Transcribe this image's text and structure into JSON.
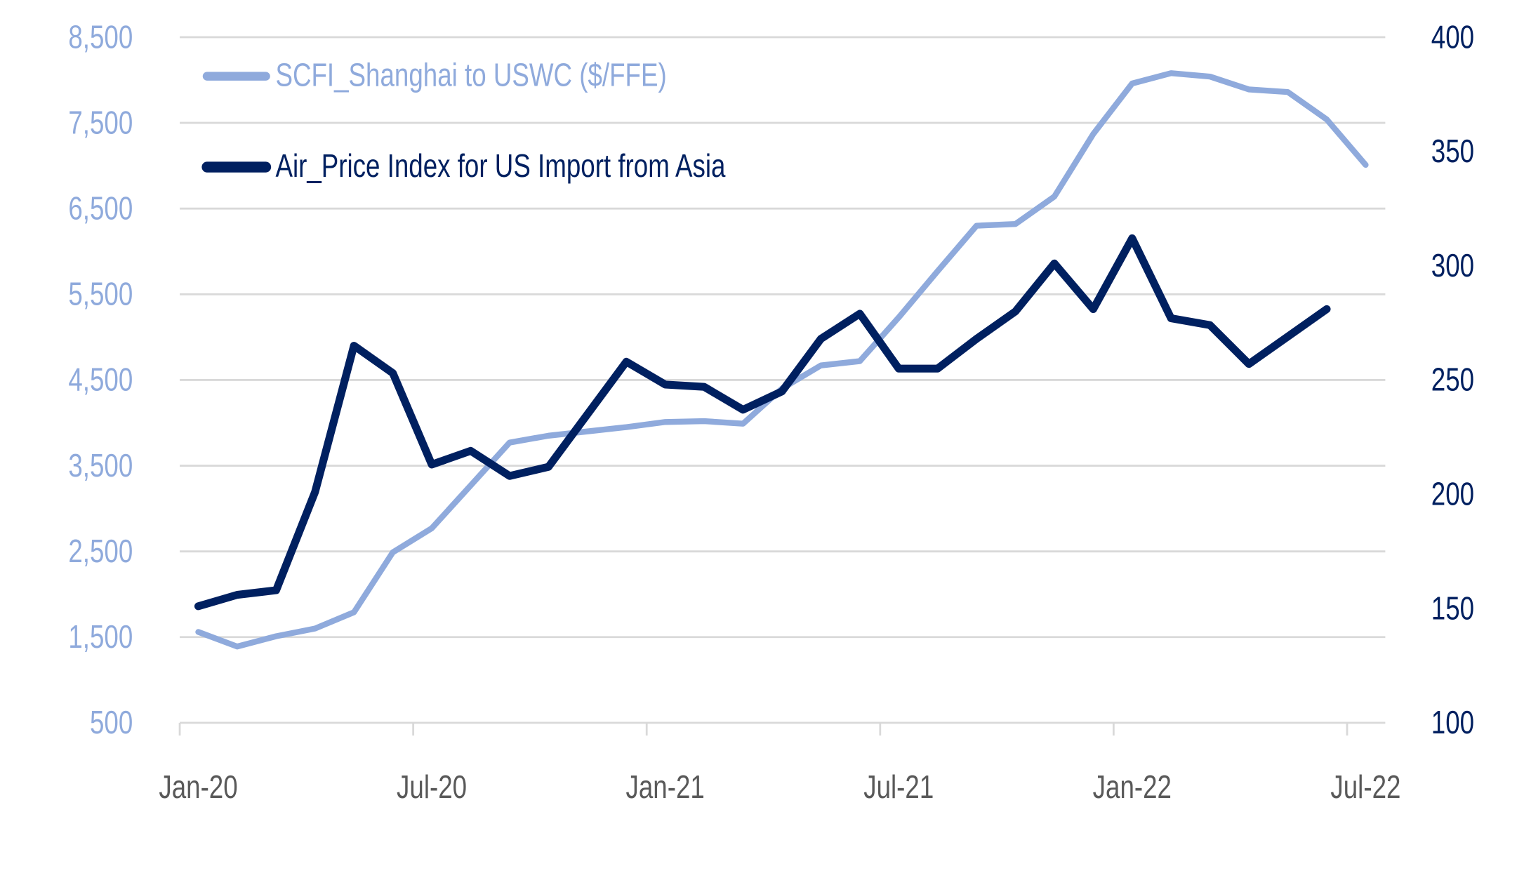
{
  "chart_data": {
    "type": "line",
    "title": "",
    "x": [
      "Jan-20",
      "Feb-20",
      "Mar-20",
      "Apr-20",
      "May-20",
      "Jun-20",
      "Jul-20",
      "Aug-20",
      "Sep-20",
      "Oct-20",
      "Nov-20",
      "Dec-20",
      "Jan-21",
      "Feb-21",
      "Mar-21",
      "Apr-21",
      "May-21",
      "Jun-21",
      "Jul-21",
      "Aug-21",
      "Sep-21",
      "Oct-21",
      "Nov-21",
      "Dec-21",
      "Jan-22",
      "Feb-22",
      "Mar-22",
      "Apr-22",
      "May-22",
      "Jun-22",
      "Jul-22"
    ],
    "x_tick_labels": [
      "Jan-20",
      "Jul-20",
      "Jan-21",
      "Jul-21",
      "Jan-22",
      "Jul-22"
    ],
    "y_left": {
      "range": [
        500,
        8500
      ],
      "ticks": [
        "8,500",
        "7,500",
        "6,500",
        "5,500",
        "4,500",
        "3,500",
        "2,500",
        "1,500",
        "500"
      ],
      "color": "#8faadc"
    },
    "y_right": {
      "range": [
        100,
        400
      ],
      "ticks": [
        "400",
        "350",
        "300",
        "250",
        "200",
        "150",
        "100"
      ],
      "color": "#002060"
    },
    "grid": true,
    "legend_placement": "top-left",
    "series": [
      {
        "name": "SCFI_Shanghai to USWC ($/FFE)",
        "axis": "left",
        "color": "#8faadc",
        "values": [
          1560,
          1390,
          1510,
          1600,
          1790,
          2490,
          2770,
          3270,
          3770,
          3850,
          3900,
          3950,
          4010,
          4020,
          3990,
          4400,
          4670,
          4720,
          5230,
          5770,
          6300,
          6320,
          6640,
          7370,
          7960,
          8080,
          8040,
          7890,
          7860,
          7540,
          7010
        ]
      },
      {
        "name": "Air_Price Index for US Import from Asia",
        "axis": "right",
        "color": "#002060",
        "values": [
          151,
          156,
          158,
          201,
          265,
          253,
          213,
          219,
          208,
          212,
          235,
          258,
          248,
          247,
          237,
          245,
          268,
          279,
          255,
          255,
          268,
          280,
          301,
          281,
          312,
          277,
          274,
          257,
          269,
          281,
          null
        ]
      }
    ]
  }
}
